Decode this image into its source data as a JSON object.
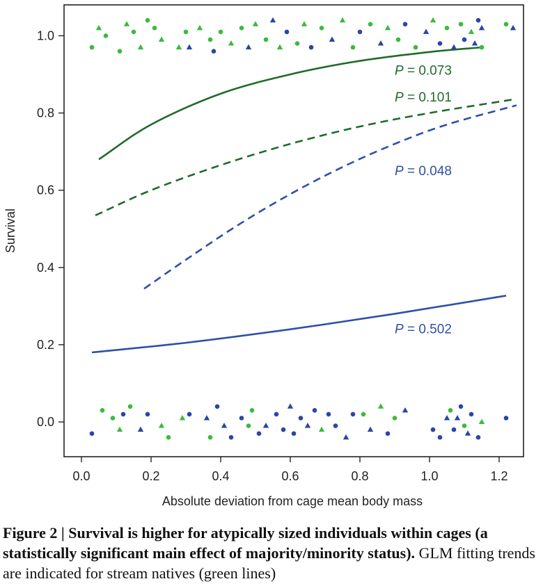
{
  "chart_data": {
    "type": "scatter",
    "xlabel": "Absolute deviation from cage mean body mass",
    "ylabel": "Survival",
    "xlim": [
      -0.05,
      1.27
    ],
    "ylim": [
      -0.09,
      1.08
    ],
    "xticks": [
      "0.0",
      "0.2",
      "0.4",
      "0.6",
      "0.8",
      "1.0",
      "1.2"
    ],
    "yticks": [
      "0.0",
      "0.2",
      "0.4",
      "0.6",
      "0.8",
      "1.0"
    ],
    "colors": {
      "green_dark": "#1f6b2a",
      "green_points": "#3cba3c",
      "blue": "#2f4fa8",
      "blue_points": "#2a45a6"
    },
    "curves": [
      {
        "color": "green_dark",
        "style": "solid",
        "x": [
          0.05,
          0.2,
          0.4,
          0.6,
          0.8,
          1.0,
          1.15
        ],
        "y": [
          0.68,
          0.77,
          0.85,
          0.9,
          0.935,
          0.958,
          0.97
        ]
      },
      {
        "color": "green_dark",
        "style": "dashed",
        "x": [
          0.04,
          0.2,
          0.4,
          0.6,
          0.8,
          1.0,
          1.24
        ],
        "y": [
          0.535,
          0.6,
          0.665,
          0.72,
          0.765,
          0.8,
          0.835
        ]
      },
      {
        "color": "blue",
        "style": "dashed",
        "x": [
          0.18,
          0.3,
          0.45,
          0.6,
          0.75,
          0.9,
          1.05,
          1.25
        ],
        "y": [
          0.345,
          0.42,
          0.51,
          0.59,
          0.66,
          0.72,
          0.77,
          0.82
        ]
      },
      {
        "color": "blue",
        "style": "solid",
        "x": [
          0.03,
          0.3,
          0.6,
          0.9,
          1.22
        ],
        "y": [
          0.18,
          0.205,
          0.24,
          0.28,
          0.327
        ]
      }
    ],
    "p_labels": [
      {
        "p": "P",
        "value": " = 0.073",
        "color": "green_dark",
        "x": 0.9,
        "y": 0.912
      },
      {
        "p": "P",
        "value": " = 0.101",
        "color": "green_dark",
        "x": 0.9,
        "y": 0.842
      },
      {
        "p": "P",
        "value": " = 0.048",
        "color": "blue",
        "x": 0.9,
        "y": 0.652
      },
      {
        "p": "P",
        "value": " = 0.502",
        "color": "blue",
        "x": 0.9,
        "y": 0.242
      }
    ],
    "points": {
      "survived": [
        {
          "x": 0.03,
          "y": 0.97,
          "c": "g",
          "s": "c"
        },
        {
          "x": 0.05,
          "y": 1.02,
          "c": "g",
          "s": "t"
        },
        {
          "x": 0.07,
          "y": 1.0,
          "c": "g",
          "s": "c"
        },
        {
          "x": 0.11,
          "y": 0.96,
          "c": "g",
          "s": "c"
        },
        {
          "x": 0.13,
          "y": 1.03,
          "c": "g",
          "s": "t"
        },
        {
          "x": 0.15,
          "y": 1.01,
          "c": "g",
          "s": "c"
        },
        {
          "x": 0.17,
          "y": 0.97,
          "c": "g",
          "s": "t"
        },
        {
          "x": 0.19,
          "y": 1.04,
          "c": "g",
          "s": "c"
        },
        {
          "x": 0.21,
          "y": 1.02,
          "c": "g",
          "s": "c"
        },
        {
          "x": 0.23,
          "y": 0.99,
          "c": "g",
          "s": "t"
        },
        {
          "x": 0.28,
          "y": 0.97,
          "c": "g",
          "s": "t"
        },
        {
          "x": 0.3,
          "y": 1.01,
          "c": "g",
          "s": "c"
        },
        {
          "x": 0.31,
          "y": 0.97,
          "c": "b",
          "s": "t"
        },
        {
          "x": 0.34,
          "y": 1.02,
          "c": "g",
          "s": "t"
        },
        {
          "x": 0.37,
          "y": 0.99,
          "c": "g",
          "s": "c"
        },
        {
          "x": 0.38,
          "y": 0.96,
          "c": "b",
          "s": "c"
        },
        {
          "x": 0.4,
          "y": 1.01,
          "c": "g",
          "s": "c"
        },
        {
          "x": 0.43,
          "y": 0.98,
          "c": "g",
          "s": "t"
        },
        {
          "x": 0.46,
          "y": 1.02,
          "c": "g",
          "s": "c"
        },
        {
          "x": 0.48,
          "y": 0.97,
          "c": "b",
          "s": "t"
        },
        {
          "x": 0.5,
          "y": 1.03,
          "c": "g",
          "s": "t"
        },
        {
          "x": 0.53,
          "y": 0.99,
          "c": "g",
          "s": "c"
        },
        {
          "x": 0.55,
          "y": 1.04,
          "c": "b",
          "s": "t"
        },
        {
          "x": 0.57,
          "y": 0.97,
          "c": "g",
          "s": "t"
        },
        {
          "x": 0.59,
          "y": 1.01,
          "c": "b",
          "s": "c"
        },
        {
          "x": 0.62,
          "y": 0.98,
          "c": "g",
          "s": "c"
        },
        {
          "x": 0.64,
          "y": 1.03,
          "c": "g",
          "s": "t"
        },
        {
          "x": 0.66,
          "y": 0.97,
          "c": "b",
          "s": "c"
        },
        {
          "x": 0.69,
          "y": 1.02,
          "c": "g",
          "s": "c"
        },
        {
          "x": 0.72,
          "y": 0.99,
          "c": "b",
          "s": "t"
        },
        {
          "x": 0.75,
          "y": 1.04,
          "c": "g",
          "s": "t"
        },
        {
          "x": 0.78,
          "y": 0.97,
          "c": "g",
          "s": "c"
        },
        {
          "x": 0.8,
          "y": 1.01,
          "c": "b",
          "s": "c"
        },
        {
          "x": 0.83,
          "y": 1.03,
          "c": "g",
          "s": "c"
        },
        {
          "x": 0.86,
          "y": 0.98,
          "c": "b",
          "s": "t"
        },
        {
          "x": 0.88,
          "y": 1.02,
          "c": "g",
          "s": "t"
        },
        {
          "x": 0.91,
          "y": 0.99,
          "c": "g",
          "s": "c"
        },
        {
          "x": 0.93,
          "y": 1.03,
          "c": "b",
          "s": "c"
        },
        {
          "x": 0.96,
          "y": 0.97,
          "c": "g",
          "s": "c"
        },
        {
          "x": 0.99,
          "y": 1.01,
          "c": "b",
          "s": "t"
        },
        {
          "x": 1.01,
          "y": 1.04,
          "c": "g",
          "s": "t"
        },
        {
          "x": 1.03,
          "y": 0.98,
          "c": "b",
          "s": "c"
        },
        {
          "x": 1.05,
          "y": 1.02,
          "c": "g",
          "s": "c"
        },
        {
          "x": 1.07,
          "y": 0.97,
          "c": "b",
          "s": "t"
        },
        {
          "x": 1.09,
          "y": 1.03,
          "c": "g",
          "s": "c"
        },
        {
          "x": 1.1,
          "y": 0.99,
          "c": "b",
          "s": "c"
        },
        {
          "x": 1.12,
          "y": 1.01,
          "c": "g",
          "s": "t"
        },
        {
          "x": 1.13,
          "y": 0.98,
          "c": "b",
          "s": "t"
        },
        {
          "x": 1.14,
          "y": 1.04,
          "c": "b",
          "s": "c"
        },
        {
          "x": 1.15,
          "y": 0.97,
          "c": "g",
          "s": "c"
        },
        {
          "x": 1.15,
          "y": 1.02,
          "c": "b",
          "s": "t"
        },
        {
          "x": 1.22,
          "y": 1.03,
          "c": "g",
          "s": "c"
        },
        {
          "x": 1.24,
          "y": 1.02,
          "c": "b",
          "s": "t"
        }
      ],
      "died": [
        {
          "x": 0.03,
          "y": -0.03,
          "c": "b",
          "s": "c"
        },
        {
          "x": 0.06,
          "y": 0.03,
          "c": "g",
          "s": "c"
        },
        {
          "x": 0.09,
          "y": 0.01,
          "c": "g",
          "s": "c"
        },
        {
          "x": 0.11,
          "y": -0.02,
          "c": "g",
          "s": "t"
        },
        {
          "x": 0.12,
          "y": 0.02,
          "c": "b",
          "s": "c"
        },
        {
          "x": 0.14,
          "y": 0.04,
          "c": "g",
          "s": "c"
        },
        {
          "x": 0.17,
          "y": -0.02,
          "c": "b",
          "s": "t"
        },
        {
          "x": 0.19,
          "y": 0.02,
          "c": "b",
          "s": "c"
        },
        {
          "x": 0.23,
          "y": -0.01,
          "c": "g",
          "s": "t"
        },
        {
          "x": 0.25,
          "y": -0.04,
          "c": "g",
          "s": "c"
        },
        {
          "x": 0.29,
          "y": 0.01,
          "c": "g",
          "s": "t"
        },
        {
          "x": 0.31,
          "y": 0.02,
          "c": "b",
          "s": "c"
        },
        {
          "x": 0.36,
          "y": 0.01,
          "c": "b",
          "s": "t"
        },
        {
          "x": 0.37,
          "y": -0.04,
          "c": "g",
          "s": "c"
        },
        {
          "x": 0.39,
          "y": 0.04,
          "c": "b",
          "s": "c"
        },
        {
          "x": 0.41,
          "y": -0.01,
          "c": "b",
          "s": "t"
        },
        {
          "x": 0.43,
          "y": -0.04,
          "c": "b",
          "s": "c"
        },
        {
          "x": 0.46,
          "y": 0.01,
          "c": "b",
          "s": "c"
        },
        {
          "x": 0.48,
          "y": -0.01,
          "c": "g",
          "s": "c"
        },
        {
          "x": 0.49,
          "y": 0.03,
          "c": "g",
          "s": "c"
        },
        {
          "x": 0.51,
          "y": -0.03,
          "c": "b",
          "s": "c"
        },
        {
          "x": 0.53,
          "y": -0.01,
          "c": "b",
          "s": "t"
        },
        {
          "x": 0.56,
          "y": 0.02,
          "c": "b",
          "s": "c"
        },
        {
          "x": 0.58,
          "y": -0.02,
          "c": "b",
          "s": "c"
        },
        {
          "x": 0.6,
          "y": 0.04,
          "c": "b",
          "s": "t"
        },
        {
          "x": 0.61,
          "y": -0.03,
          "c": "b",
          "s": "c"
        },
        {
          "x": 0.63,
          "y": 0.01,
          "c": "b",
          "s": "c"
        },
        {
          "x": 0.65,
          "y": -0.01,
          "c": "b",
          "s": "t"
        },
        {
          "x": 0.67,
          "y": 0.03,
          "c": "b",
          "s": "c"
        },
        {
          "x": 0.69,
          "y": -0.02,
          "c": "g",
          "s": "t"
        },
        {
          "x": 0.71,
          "y": 0.02,
          "c": "b",
          "s": "c"
        },
        {
          "x": 0.73,
          "y": -0.01,
          "c": "b",
          "s": "c"
        },
        {
          "x": 0.76,
          "y": -0.04,
          "c": "b",
          "s": "t"
        },
        {
          "x": 0.78,
          "y": 0.02,
          "c": "b",
          "s": "c"
        },
        {
          "x": 0.81,
          "y": 0.02,
          "c": "g",
          "s": "c"
        },
        {
          "x": 0.83,
          "y": -0.02,
          "c": "b",
          "s": "t"
        },
        {
          "x": 0.86,
          "y": 0.04,
          "c": "g",
          "s": "t"
        },
        {
          "x": 0.88,
          "y": -0.03,
          "c": "b",
          "s": "c"
        },
        {
          "x": 0.9,
          "y": 0.01,
          "c": "g",
          "s": "c"
        },
        {
          "x": 0.93,
          "y": 0.03,
          "c": "b",
          "s": "t"
        },
        {
          "x": 1.01,
          "y": -0.02,
          "c": "b",
          "s": "c"
        },
        {
          "x": 1.03,
          "y": -0.04,
          "c": "b",
          "s": "c"
        },
        {
          "x": 1.05,
          "y": 0.01,
          "c": "b",
          "s": "t"
        },
        {
          "x": 1.06,
          "y": 0.03,
          "c": "g",
          "s": "c"
        },
        {
          "x": 1.07,
          "y": -0.02,
          "c": "b",
          "s": "c"
        },
        {
          "x": 1.08,
          "y": 0.01,
          "c": "b",
          "s": "t"
        },
        {
          "x": 1.09,
          "y": 0.04,
          "c": "b",
          "s": "c"
        },
        {
          "x": 1.1,
          "y": -0.01,
          "c": "g",
          "s": "c"
        },
        {
          "x": 1.11,
          "y": -0.03,
          "c": "b",
          "s": "t"
        },
        {
          "x": 1.12,
          "y": 0.02,
          "c": "b",
          "s": "c"
        },
        {
          "x": 1.14,
          "y": -0.04,
          "c": "b",
          "s": "c"
        },
        {
          "x": 1.15,
          "y": 0.0,
          "c": "g",
          "s": "t"
        },
        {
          "x": 1.22,
          "y": 0.01,
          "c": "b",
          "s": "c"
        }
      ]
    }
  },
  "caption": {
    "figure_label": "Figure 2 | ",
    "title": "Survival is higher for atypically sized individuals within cages (a statistically significant main effect of majority/minority status).",
    "body": " GLM fitting trends are indicated for stream natives (green lines)"
  }
}
